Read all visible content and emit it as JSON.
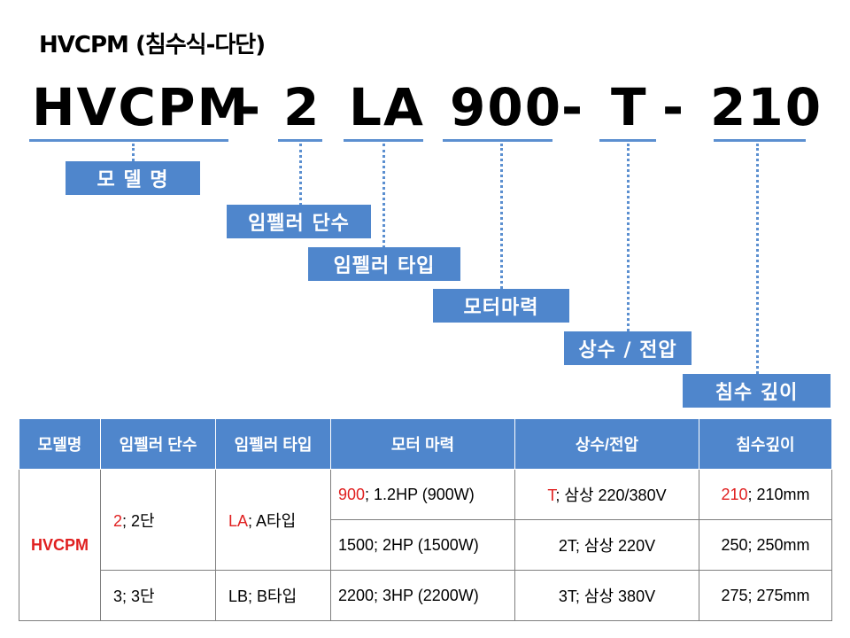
{
  "title": "HVCPM (침수식-다단)",
  "code": {
    "model": "HVCPM",
    "dash1": "-",
    "stages": "2",
    "impeller": "LA",
    "motor": "900",
    "dash2": "-",
    "phase": "T",
    "dash3": "-",
    "depth": "210"
  },
  "labels": {
    "model": "모 델 명",
    "stages": "임펠러 단수",
    "impeller": "임펠러 타입",
    "motor": "모터마력",
    "phase": "상수 / 전압",
    "depth": "침수 깊이"
  },
  "colors": {
    "accent": "#4f86cc",
    "highlight": "#e02020"
  },
  "table": {
    "headers": [
      "모델명",
      "임펠러 단수",
      "임펠러 타입",
      "모터 마력",
      "상수/전압",
      "침수깊이"
    ],
    "model": "HVCPM",
    "stages": [
      {
        "code": "2",
        "desc": "; 2단"
      },
      {
        "code": "3",
        "desc": "; 3단"
      }
    ],
    "impellers": [
      {
        "code": "LA",
        "desc": "; A타입"
      },
      {
        "code": "LB",
        "desc": "; B타입"
      }
    ],
    "motors": [
      {
        "code": "900",
        "desc": "; 1.2HP (900W)"
      },
      {
        "code": "1500",
        "desc": "; 2HP (1500W)"
      },
      {
        "code": "2200",
        "desc": "; 3HP (2200W)"
      }
    ],
    "phases": [
      {
        "code": "T",
        "desc": "; 삼상 220/380V"
      },
      {
        "code": "2T",
        "desc": "; 삼상 220V"
      },
      {
        "code": "3T",
        "desc": "; 삼상 380V"
      }
    ],
    "depths": [
      {
        "code": "210",
        "desc": "; 210mm"
      },
      {
        "code": "250",
        "desc": "; 250mm"
      },
      {
        "code": "275",
        "desc": "; 275mm"
      }
    ]
  }
}
